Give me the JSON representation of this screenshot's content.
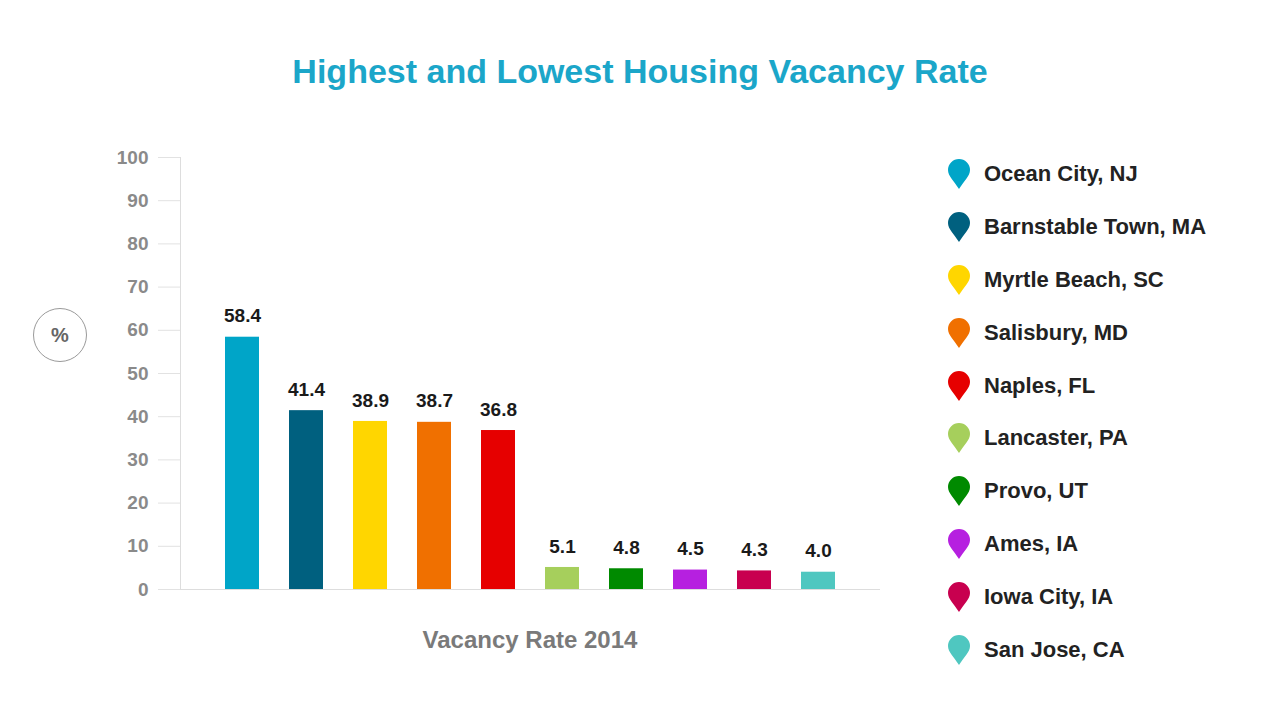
{
  "chart_data": {
    "type": "bar",
    "title": "Highest and Lowest Housing Vacancy Rate",
    "categories": [
      "Ocean City, NJ",
      "Barnstable Town, MA",
      "Myrtle Beach, SC",
      "Salisbury, MD",
      "Naples, FL",
      "Lancaster, PA",
      "Provo, UT",
      "Ames, IA",
      "Iowa City, IA",
      "San Jose, CA"
    ],
    "values": [
      58.4,
      41.4,
      38.9,
      38.7,
      36.8,
      5.1,
      4.8,
      4.5,
      4.3,
      4.0
    ],
    "value_labels": [
      "58.4",
      "41.4",
      "38.9",
      "38.7",
      "36.8",
      "5.1",
      "4.8",
      "4.5",
      "4.3",
      "4.0"
    ],
    "colors": [
      "#00a5c8",
      "#00607f",
      "#ffd600",
      "#f07000",
      "#e60000",
      "#a6cf5c",
      "#008a00",
      "#b620e0",
      "#c8004f",
      "#4fc7c0"
    ],
    "ylabel": "%",
    "xlabel": "Vacancy Rate 2014",
    "ylim": [
      0,
      100
    ],
    "yticks": [
      0,
      10,
      20,
      30,
      40,
      50,
      60,
      70,
      80,
      90,
      100
    ],
    "data_labels": true,
    "legend": "right",
    "tick_labels": "y"
  }
}
